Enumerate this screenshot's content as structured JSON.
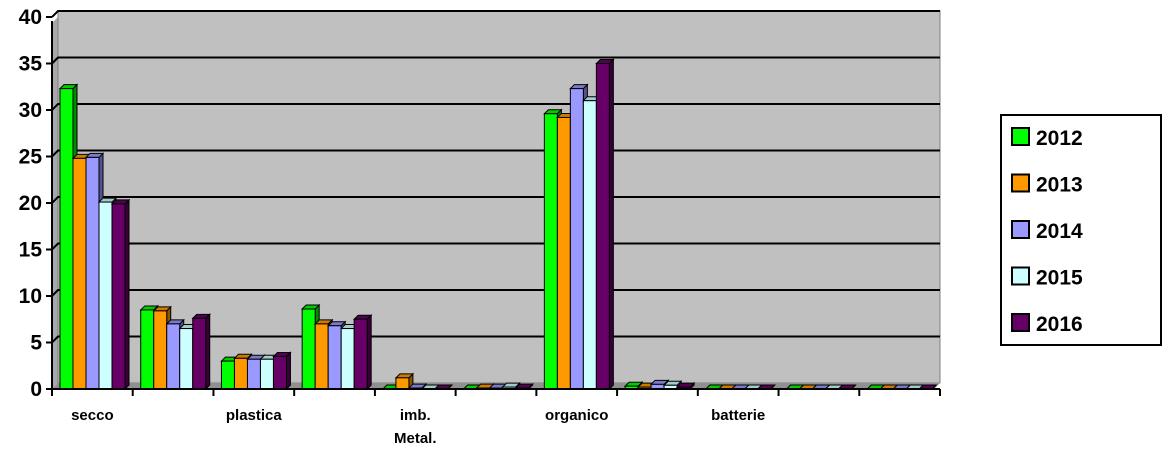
{
  "chart_data": {
    "type": "bar",
    "title": "",
    "xlabel": "",
    "ylabel": "",
    "ylim": [
      0,
      40
    ],
    "yticks": [
      0,
      5,
      10,
      15,
      20,
      25,
      30,
      35,
      40
    ],
    "grid": true,
    "legend_position": "right",
    "plot_background": "#c0c0c0",
    "categories": [
      "secco",
      "",
      "plastica",
      "",
      "imb. Metal.",
      "",
      "organico",
      "",
      "batterie",
      "",
      ""
    ],
    "series": [
      {
        "name": "2012",
        "color": "#00ff00",
        "values": [
          32.3,
          8.5,
          3.0,
          8.6,
          0.0,
          0.0,
          29.6,
          0.3,
          0.0,
          0.0,
          0.0
        ]
      },
      {
        "name": "2013",
        "color": "#ff9900",
        "values": [
          24.8,
          8.4,
          3.3,
          7.0,
          1.2,
          0.1,
          29.2,
          0.2,
          0.0,
          0.0,
          0.0
        ]
      },
      {
        "name": "2014",
        "color": "#9999ff",
        "values": [
          24.9,
          7.0,
          3.2,
          6.8,
          0.1,
          0.1,
          32.3,
          0.5,
          0.0,
          0.0,
          0.0
        ]
      },
      {
        "name": "2015",
        "color": "#ccffff",
        "values": [
          20.1,
          6.5,
          3.2,
          6.5,
          0.0,
          0.2,
          31.0,
          0.4,
          0.0,
          0.0,
          0.0
        ]
      },
      {
        "name": "2016",
        "color": "#660066",
        "values": [
          19.9,
          7.6,
          3.5,
          7.5,
          0.0,
          0.1,
          35.0,
          0.2,
          0.0,
          0.0,
          0.0
        ]
      }
    ]
  }
}
